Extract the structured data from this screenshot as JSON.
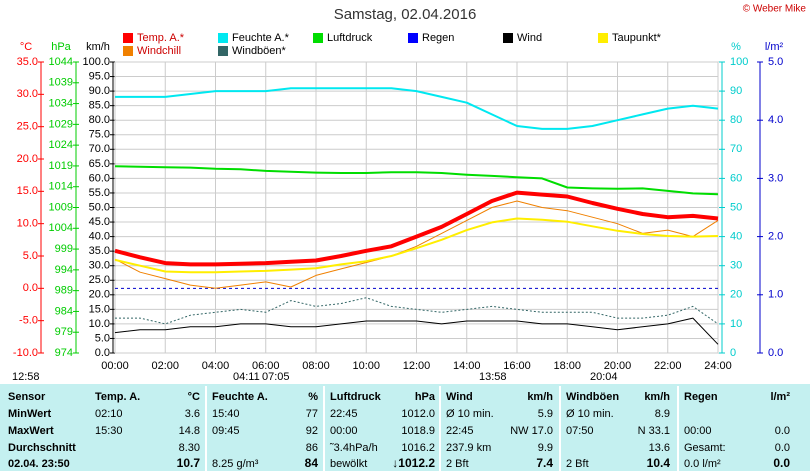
{
  "chart_data": {
    "type": "line",
    "title": "Samstag, 02.04.2016",
    "copyright": "© Weber Mike",
    "x": [
      0,
      1,
      2,
      3,
      4,
      5,
      6,
      7,
      8,
      9,
      10,
      11,
      12,
      13,
      14,
      15,
      16,
      17,
      18,
      19,
      20,
      21,
      22,
      23,
      24
    ],
    "xlim": [
      0,
      24
    ],
    "xticks": [
      {
        "value": 0,
        "label": "00:00"
      },
      {
        "value": 2,
        "label": "02:00"
      },
      {
        "value": 4,
        "label": "04:00"
      },
      {
        "value": 6,
        "label": "06:00"
      },
      {
        "value": 8,
        "label": "08:00"
      },
      {
        "value": 10,
        "label": "10:00"
      },
      {
        "value": 12,
        "label": "12:00"
      },
      {
        "value": 14,
        "label": "14:00"
      },
      {
        "value": 16,
        "label": "16:00"
      },
      {
        "value": 18,
        "label": "18:00"
      },
      {
        "value": 20,
        "label": "20:00"
      },
      {
        "value": 22,
        "label": "22:00"
      },
      {
        "value": 24,
        "label": "24:00"
      }
    ],
    "axes": [
      {
        "label": "°C",
        "color": "#ff0000",
        "side": "left",
        "lim": [
          -10,
          35
        ],
        "ticks": [
          {
            "value": 35,
            "label": "35.0"
          },
          {
            "value": 30,
            "label": "30.0"
          },
          {
            "value": 25,
            "label": "25.0"
          },
          {
            "value": 20,
            "label": "20.0"
          },
          {
            "value": 15,
            "label": "15.0"
          },
          {
            "value": 10,
            "label": "10.0"
          },
          {
            "value": 5,
            "label": "5.0"
          },
          {
            "value": 0,
            "label": "0.0"
          },
          {
            "value": -5,
            "label": "-5.0"
          },
          {
            "value": -10,
            "label": "-10.0"
          }
        ]
      },
      {
        "label": "hPa",
        "color": "#00cc00",
        "side": "left",
        "lim": [
          974,
          1044
        ],
        "ticks": [
          1044,
          1039,
          1034,
          1029,
          1024,
          1019,
          1014,
          1009,
          1004,
          999,
          994,
          989,
          984,
          979,
          974
        ]
      },
      {
        "label": "km/h",
        "color": "#000000",
        "side": "left",
        "lim": [
          0,
          100
        ],
        "grid": true,
        "ticks": [
          {
            "value": 100,
            "label": "100.0"
          },
          {
            "value": 95,
            "label": "95.0"
          },
          {
            "value": 90,
            "label": "90.0"
          },
          {
            "value": 85,
            "label": "85.0"
          },
          {
            "value": 80,
            "label": "80.0"
          },
          {
            "value": 75,
            "label": "75.0"
          },
          {
            "value": 70,
            "label": "70.0"
          },
          {
            "value": 65,
            "label": "65.0"
          },
          {
            "value": 60,
            "label": "60.0"
          },
          {
            "value": 55,
            "label": "55.0"
          },
          {
            "value": 50,
            "label": "50.0"
          },
          {
            "value": 45,
            "label": "45.0"
          },
          {
            "value": 40,
            "label": "40.0"
          },
          {
            "value": 35,
            "label": "35.0"
          },
          {
            "value": 30,
            "label": "30.0"
          },
          {
            "value": 25,
            "label": "25.0"
          },
          {
            "value": 20,
            "label": "20.0"
          },
          {
            "value": 15,
            "label": "15.0"
          },
          {
            "value": 10,
            "label": "10.0"
          },
          {
            "value": 5,
            "label": "5.0"
          },
          {
            "value": 0,
            "label": "0.0"
          }
        ]
      },
      {
        "label": "%",
        "color": "#00cccc",
        "side": "right",
        "lim": [
          0,
          100
        ],
        "ticks": [
          100,
          90,
          80,
          70,
          60,
          50,
          40,
          30,
          20,
          10,
          0
        ]
      },
      {
        "label": "l/m²",
        "color": "#0000cc",
        "side": "right",
        "lim": [
          0,
          5
        ],
        "ticks": [
          {
            "value": 5,
            "label": "5.0"
          },
          {
            "value": 4,
            "label": "4.0"
          },
          {
            "value": 3,
            "label": "3.0"
          },
          {
            "value": 2,
            "label": "2.0"
          },
          {
            "value": 1,
            "label": "1.0"
          },
          {
            "value": 0,
            "label": "0.0"
          }
        ]
      }
    ],
    "freeze_line": {
      "axis": 0,
      "value": 0,
      "color": "#0000cc"
    },
    "series": [
      {
        "name": "Temp. A.*",
        "color": "#ff0000",
        "axis": 0,
        "width": 4,
        "values": [
          5.8,
          4.8,
          3.9,
          3.7,
          3.7,
          3.8,
          3.9,
          4.1,
          4.3,
          5.0,
          5.8,
          6.5,
          8.0,
          9.5,
          11.5,
          13.5,
          14.8,
          14.5,
          14.2,
          13.2,
          12.3,
          11.5,
          11.0,
          11.2,
          10.8
        ]
      },
      {
        "name": "Feuchte A.*",
        "color": "#00e8f0",
        "axis": 3,
        "width": 2,
        "values": [
          88,
          88,
          88,
          89,
          90,
          90,
          90,
          91,
          91,
          91,
          91,
          91,
          90,
          88,
          86,
          82,
          78,
          77,
          77,
          78,
          80,
          82,
          84,
          85,
          84
        ]
      },
      {
        "name": "Luftdruck",
        "color": "#00dd00",
        "axis": 1,
        "width": 2,
        "values": [
          1018.9,
          1018.8,
          1018.7,
          1018.6,
          1018.3,
          1018.2,
          1017.8,
          1017.6,
          1017.4,
          1017.3,
          1017.3,
          1017.5,
          1017.5,
          1017.3,
          1016.9,
          1016.6,
          1016.3,
          1016.0,
          1013.8,
          1013.6,
          1013.5,
          1013.6,
          1013.0,
          1012.4,
          1012.2
        ]
      },
      {
        "name": "Regen",
        "color": "#0000ff",
        "axis": 4
      },
      {
        "name": "Wind",
        "color": "#000000",
        "axis": 2,
        "width": 1,
        "values": [
          7,
          8,
          8,
          9,
          9,
          10,
          10,
          9,
          9,
          10,
          11,
          11,
          11,
          10,
          11,
          11,
          11,
          10,
          10,
          9,
          8,
          9,
          10,
          12,
          3
        ]
      },
      {
        "name": "Taupunkt*",
        "color": "#ffee00",
        "axis": 0,
        "width": 2,
        "values": [
          4.4,
          3.5,
          2.6,
          2.5,
          2.5,
          2.6,
          2.7,
          2.9,
          3.1,
          3.7,
          4.2,
          5.0,
          6.2,
          7.5,
          9.0,
          10.2,
          10.8,
          10.6,
          10.3,
          9.6,
          8.9,
          8.4,
          8.1,
          8.0,
          8.1
        ]
      },
      {
        "name": "Windchill",
        "color": "#f08000",
        "axis": 0,
        "width": 1,
        "values": [
          4.5,
          2.5,
          1.5,
          0.5,
          0.0,
          0.5,
          1.0,
          0.2,
          2.0,
          3.0,
          4.0,
          5.0,
          6.5,
          8.5,
          10.5,
          12.5,
          13.5,
          12.5,
          12.0,
          11.0,
          10.0,
          8.5,
          9.0,
          8.0,
          10.5
        ]
      },
      {
        "name": "Windböen*",
        "color": "#336666",
        "axis": 2,
        "width": 1,
        "dash": "2,2",
        "values": [
          12,
          12,
          10,
          13,
          14,
          15,
          14,
          18,
          16,
          17,
          19,
          16,
          15,
          14,
          15,
          16,
          15,
          14,
          14,
          14,
          12,
          12,
          13,
          16,
          10
        ]
      }
    ],
    "sun_times": [
      "12:58",
      "04:11",
      "07:05",
      "13:58",
      "20:04"
    ]
  },
  "table": {
    "header": [
      "Sensor",
      "Temp. A.",
      "°C",
      "Feuchte A.",
      "%",
      "Luftdruck",
      "hPa",
      "Wind",
      "km/h",
      "Windböen",
      "km/h",
      "Regen",
      "l/m²"
    ],
    "rows": [
      [
        "MinWert",
        "02:10",
        "3.6",
        "15:40",
        "77",
        "22:45",
        "1012.0",
        "Ø 10 min.",
        "5.9",
        "Ø 10 min.",
        "8.9",
        null,
        null
      ],
      [
        "MaxWert",
        "15:30",
        "14.8",
        "09:45",
        "92",
        "00:00",
        "1018.9",
        "22:45",
        "NW 17.0",
        "07:50",
        "N 33.1",
        "00:00",
        "0.0"
      ],
      [
        "Durchschnitt",
        null,
        "8.30",
        null,
        "86",
        "˜3.4hPa/h",
        "1016.2",
        "237.9 km",
        "9.9",
        null,
        "13.6",
        "Gesamt:",
        "0.0"
      ],
      [
        "02.04. 23:50",
        null,
        "10.7",
        "8.25 g/m³",
        "84",
        "bewölkt",
        "↓1012.2",
        "2 Bft",
        "7.4",
        "2 Bft",
        "10.4",
        "0.0 l/m²",
        "0.0"
      ]
    ]
  }
}
